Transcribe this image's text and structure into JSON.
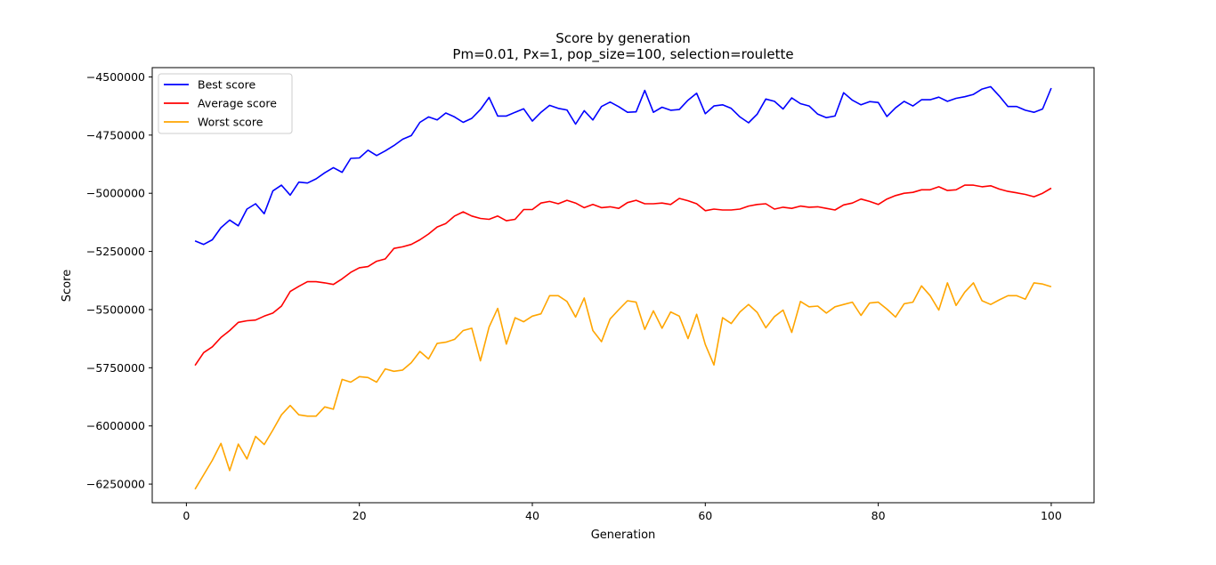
{
  "chart_data": {
    "type": "line",
    "title": "Score by generation",
    "subtitle": "Pm=0.01, Px=1, pop_size=100, selection=roulette",
    "xlabel": "Generation",
    "ylabel": "Score",
    "xlim": [
      -3.95,
      104.95
    ],
    "ylim": [
      -6330000,
      -4460000
    ],
    "xticks": [
      0,
      20,
      40,
      60,
      80,
      100
    ],
    "xtick_labels": [
      "0",
      "20",
      "40",
      "60",
      "80",
      "100"
    ],
    "yticks": [
      -6250000,
      -6000000,
      -5750000,
      -5500000,
      -5250000,
      -5000000,
      -4750000,
      -4500000
    ],
    "ytick_labels": [
      "−6250000",
      "−6000000",
      "−5750000",
      "−5500000",
      "−5250000",
      "−5000000",
      "−4750000",
      "−4500000"
    ],
    "grid": false,
    "legend_position": "top-left",
    "series": [
      {
        "name": "Best score",
        "color": "#0000ff",
        "x": [
          1,
          2,
          3,
          4,
          5,
          6,
          7,
          8,
          9,
          10,
          11,
          12,
          13,
          14,
          15,
          16,
          17,
          18,
          19,
          20,
          21,
          22,
          23,
          24,
          25,
          26,
          27,
          28,
          29,
          30,
          31,
          32,
          33,
          34,
          35,
          36,
          37,
          38,
          39,
          40,
          41,
          42,
          43,
          44,
          45,
          46,
          47,
          48,
          49,
          50,
          51,
          52,
          53,
          54,
          55,
          56,
          57,
          58,
          59,
          60,
          61,
          62,
          63,
          64,
          65,
          66,
          67,
          68,
          69,
          70,
          71,
          72,
          73,
          74,
          75,
          76,
          77,
          78,
          79,
          80,
          81,
          82,
          83,
          84,
          85,
          86,
          87,
          88,
          89,
          90,
          91,
          92,
          93,
          94,
          95,
          96,
          97,
          98,
          99,
          100
        ],
        "values": [
          -5205000,
          -5220000,
          -5200000,
          -5148000,
          -5115000,
          -5140000,
          -5068000,
          -5045000,
          -5088000,
          -4990000,
          -4965000,
          -5008000,
          -4952000,
          -4956000,
          -4938000,
          -4912000,
          -4890000,
          -4910000,
          -4850000,
          -4848000,
          -4815000,
          -4838000,
          -4818000,
          -4795000,
          -4768000,
          -4752000,
          -4695000,
          -4672000,
          -4685000,
          -4655000,
          -4672000,
          -4695000,
          -4678000,
          -4640000,
          -4588000,
          -4668000,
          -4668000,
          -4652000,
          -4637000,
          -4690000,
          -4652000,
          -4622000,
          -4635000,
          -4642000,
          -4703000,
          -4645000,
          -4685000,
          -4627000,
          -4608000,
          -4628000,
          -4652000,
          -4650000,
          -4558000,
          -4652000,
          -4630000,
          -4643000,
          -4640000,
          -4600000,
          -4570000,
          -4658000,
          -4625000,
          -4620000,
          -4635000,
          -4672000,
          -4697000,
          -4660000,
          -4595000,
          -4605000,
          -4638000,
          -4590000,
          -4615000,
          -4625000,
          -4660000,
          -4675000,
          -4668000,
          -4568000,
          -4600000,
          -4620000,
          -4606000,
          -4610000,
          -4670000,
          -4633000,
          -4605000,
          -4625000,
          -4598000,
          -4598000,
          -4587000,
          -4605000,
          -4592000,
          -4585000,
          -4575000,
          -4552000,
          -4542000,
          -4582000,
          -4627000,
          -4627000,
          -4643000,
          -4652000,
          -4638000,
          -4548000
        ]
      },
      {
        "name": "Average score",
        "color": "#ff0000",
        "x": [
          1,
          2,
          3,
          4,
          5,
          6,
          7,
          8,
          9,
          10,
          11,
          12,
          13,
          14,
          15,
          16,
          17,
          18,
          19,
          20,
          21,
          22,
          23,
          24,
          25,
          26,
          27,
          28,
          29,
          30,
          31,
          32,
          33,
          34,
          35,
          36,
          37,
          38,
          39,
          40,
          41,
          42,
          43,
          44,
          45,
          46,
          47,
          48,
          49,
          50,
          51,
          52,
          53,
          54,
          55,
          56,
          57,
          58,
          59,
          60,
          61,
          62,
          63,
          64,
          65,
          66,
          67,
          68,
          69,
          70,
          71,
          72,
          73,
          74,
          75,
          76,
          77,
          78,
          79,
          80,
          81,
          82,
          83,
          84,
          85,
          86,
          87,
          88,
          89,
          90,
          91,
          92,
          93,
          94,
          95,
          96,
          97,
          98,
          99,
          100
        ],
        "values": [
          -5740000,
          -5685000,
          -5660000,
          -5620000,
          -5590000,
          -5555000,
          -5548000,
          -5545000,
          -5528000,
          -5515000,
          -5485000,
          -5422000,
          -5400000,
          -5380000,
          -5380000,
          -5385000,
          -5392000,
          -5368000,
          -5340000,
          -5320000,
          -5315000,
          -5292000,
          -5282000,
          -5237000,
          -5230000,
          -5220000,
          -5200000,
          -5175000,
          -5145000,
          -5130000,
          -5098000,
          -5080000,
          -5098000,
          -5108000,
          -5112000,
          -5098000,
          -5118000,
          -5112000,
          -5070000,
          -5070000,
          -5042000,
          -5035000,
          -5045000,
          -5030000,
          -5042000,
          -5062000,
          -5048000,
          -5062000,
          -5058000,
          -5065000,
          -5040000,
          -5030000,
          -5045000,
          -5045000,
          -5042000,
          -5048000,
          -5022000,
          -5032000,
          -5045000,
          -5075000,
          -5068000,
          -5072000,
          -5072000,
          -5068000,
          -5055000,
          -5048000,
          -5045000,
          -5068000,
          -5060000,
          -5065000,
          -5055000,
          -5060000,
          -5058000,
          -5065000,
          -5072000,
          -5050000,
          -5042000,
          -5025000,
          -5035000,
          -5048000,
          -5025000,
          -5010000,
          -5000000,
          -4996000,
          -4985000,
          -4985000,
          -4972000,
          -4988000,
          -4985000,
          -4965000,
          -4965000,
          -4972000,
          -4968000,
          -4982000,
          -4992000,
          -4998000,
          -5005000,
          -5015000,
          -5000000,
          -4978000
        ]
      },
      {
        "name": "Worst score",
        "color": "#ffa500",
        "x": [
          1,
          2,
          3,
          4,
          5,
          6,
          7,
          8,
          9,
          10,
          11,
          12,
          13,
          14,
          15,
          16,
          17,
          18,
          19,
          20,
          21,
          22,
          23,
          24,
          25,
          26,
          27,
          28,
          29,
          30,
          31,
          32,
          33,
          34,
          35,
          36,
          37,
          38,
          39,
          40,
          41,
          42,
          43,
          44,
          45,
          46,
          47,
          48,
          49,
          50,
          51,
          52,
          53,
          54,
          55,
          56,
          57,
          58,
          59,
          60,
          61,
          62,
          63,
          64,
          65,
          66,
          67,
          68,
          69,
          70,
          71,
          72,
          73,
          74,
          75,
          76,
          77,
          78,
          79,
          80,
          81,
          82,
          83,
          84,
          85,
          86,
          87,
          88,
          89,
          90,
          91,
          92,
          93,
          94,
          95,
          96,
          97,
          98,
          99,
          100
        ],
        "values": [
          -6272000,
          -6210000,
          -6148000,
          -6075000,
          -6192000,
          -6078000,
          -6142000,
          -6045000,
          -6080000,
          -6018000,
          -5952000,
          -5912000,
          -5952000,
          -5958000,
          -5958000,
          -5918000,
          -5928000,
          -5800000,
          -5812000,
          -5788000,
          -5792000,
          -5812000,
          -5755000,
          -5765000,
          -5760000,
          -5728000,
          -5680000,
          -5712000,
          -5645000,
          -5640000,
          -5628000,
          -5590000,
          -5580000,
          -5720000,
          -5575000,
          -5495000,
          -5648000,
          -5535000,
          -5552000,
          -5528000,
          -5518000,
          -5440000,
          -5440000,
          -5465000,
          -5532000,
          -5450000,
          -5590000,
          -5638000,
          -5540000,
          -5500000,
          -5462000,
          -5468000,
          -5585000,
          -5505000,
          -5580000,
          -5510000,
          -5528000,
          -5625000,
          -5520000,
          -5650000,
          -5738000,
          -5535000,
          -5560000,
          -5510000,
          -5478000,
          -5512000,
          -5578000,
          -5530000,
          -5502000,
          -5598000,
          -5465000,
          -5488000,
          -5485000,
          -5515000,
          -5488000,
          -5478000,
          -5468000,
          -5525000,
          -5472000,
          -5468000,
          -5498000,
          -5532000,
          -5475000,
          -5468000,
          -5398000,
          -5440000,
          -5502000,
          -5385000,
          -5482000,
          -5425000,
          -5385000,
          -5462000,
          -5478000,
          -5458000,
          -5440000,
          -5440000,
          -5455000,
          -5385000,
          -5390000,
          -5402000
        ]
      }
    ]
  }
}
